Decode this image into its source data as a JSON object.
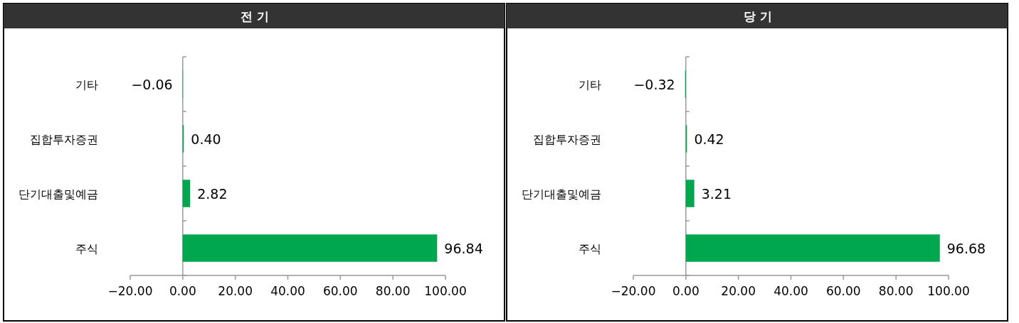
{
  "chart_data": [
    {
      "type": "bar",
      "orientation": "horizontal",
      "title": "전 기",
      "categories": [
        "기타",
        "집합투자증권",
        "단기대출및예금",
        "주식"
      ],
      "series": [
        {
          "color": "#00a74f",
          "values": [
            -0.06,
            0.4,
            2.82,
            96.84
          ],
          "value_labels": [
            "−0.06",
            "0.40",
            "2.82",
            "96.84"
          ]
        }
      ],
      "xlim": [
        -20,
        100
      ],
      "xticks": [
        {
          "value": -20,
          "label": "−20.00"
        },
        {
          "value": 0,
          "label": "0.00"
        },
        {
          "value": 20,
          "label": "20.00"
        },
        {
          "value": 40,
          "label": "40.00"
        },
        {
          "value": 60,
          "label": "60.00"
        },
        {
          "value": 80,
          "label": "80.00"
        },
        {
          "value": 100,
          "label": "100.00"
        }
      ]
    },
    {
      "type": "bar",
      "orientation": "horizontal",
      "title": "당 기",
      "categories": [
        "기타",
        "집합투자증권",
        "단기대출및예금",
        "주식"
      ],
      "series": [
        {
          "color": "#00a74f",
          "values": [
            -0.32,
            0.42,
            3.21,
            96.68
          ],
          "value_labels": [
            "−0.32",
            "0.42",
            "3.21",
            "96.68"
          ]
        }
      ],
      "xlim": [
        -20,
        100
      ],
      "xticks": [
        {
          "value": -20,
          "label": "−20.00"
        },
        {
          "value": 0,
          "label": "0.00"
        },
        {
          "value": 20,
          "label": "20.00"
        },
        {
          "value": 40,
          "label": "40.00"
        },
        {
          "value": 60,
          "label": "60.00"
        },
        {
          "value": 80,
          "label": "80.00"
        },
        {
          "value": 100,
          "label": "100.00"
        }
      ]
    }
  ]
}
